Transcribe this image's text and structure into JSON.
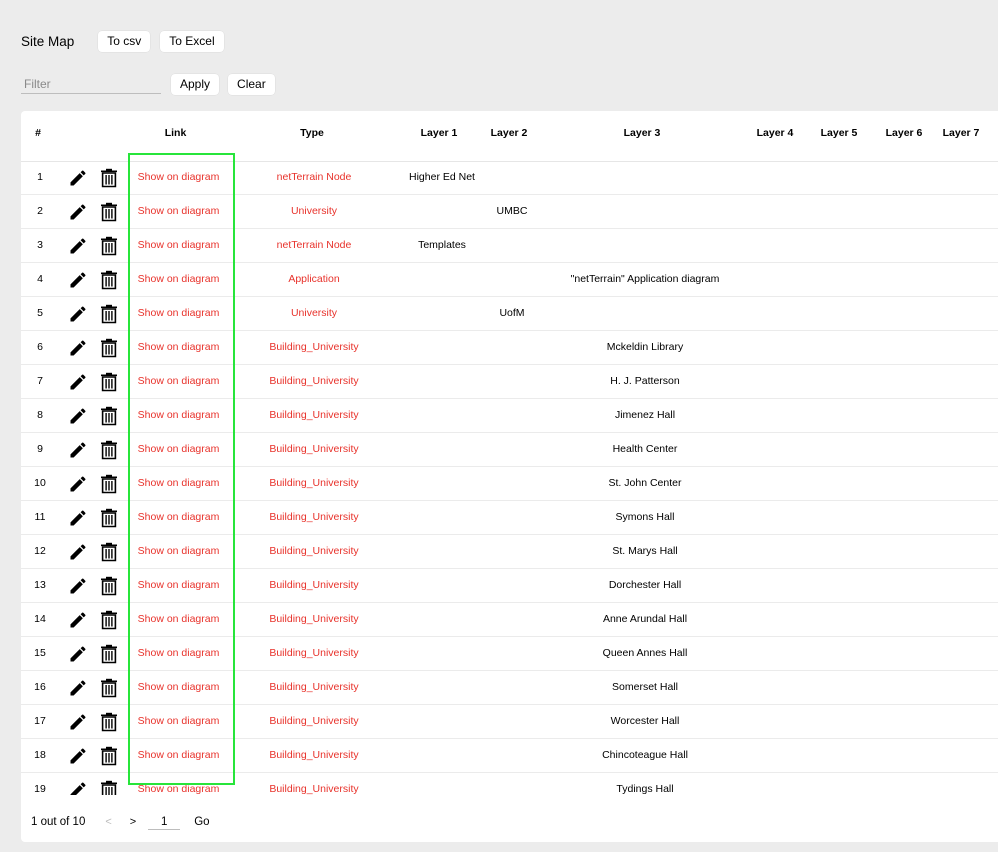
{
  "header": {
    "title": "Site Map",
    "to_csv": "To csv",
    "to_excel": "To Excel"
  },
  "filter": {
    "placeholder": "Filter",
    "value": "",
    "apply": "Apply",
    "clear": "Clear"
  },
  "table": {
    "columns": [
      "#",
      "Link",
      "Type",
      "Layer 1",
      "Layer 2",
      "Layer 3",
      "Layer 4",
      "Layer 5",
      "Layer 6",
      "Layer 7"
    ],
    "rows": [
      {
        "num": "1",
        "link": "Show on diagram",
        "type": "netTerrain Node",
        "layer1": "Higher Ed Net",
        "layer2": "",
        "layer3": ""
      },
      {
        "num": "2",
        "link": "Show on diagram",
        "type": "University",
        "layer1": "",
        "layer2": "UMBC",
        "layer3": ""
      },
      {
        "num": "3",
        "link": "Show on diagram",
        "type": "netTerrain Node",
        "layer1": "Templates",
        "layer2": "",
        "layer3": ""
      },
      {
        "num": "4",
        "link": "Show on diagram",
        "type": "Application",
        "layer1": "",
        "layer2": "",
        "layer3": "\"netTerrain\" Application diagram"
      },
      {
        "num": "5",
        "link": "Show on diagram",
        "type": "University",
        "layer1": "",
        "layer2": "UofM",
        "layer3": ""
      },
      {
        "num": "6",
        "link": "Show on diagram",
        "type": "Building_University",
        "layer1": "",
        "layer2": "",
        "layer3": "Mckeldin Library"
      },
      {
        "num": "7",
        "link": "Show on diagram",
        "type": "Building_University",
        "layer1": "",
        "layer2": "",
        "layer3": "H. J. Patterson"
      },
      {
        "num": "8",
        "link": "Show on diagram",
        "type": "Building_University",
        "layer1": "",
        "layer2": "",
        "layer3": "Jimenez Hall"
      },
      {
        "num": "9",
        "link": "Show on diagram",
        "type": "Building_University",
        "layer1": "",
        "layer2": "",
        "layer3": "Health Center"
      },
      {
        "num": "10",
        "link": "Show on diagram",
        "type": "Building_University",
        "layer1": "",
        "layer2": "",
        "layer3": "St. John Center"
      },
      {
        "num": "11",
        "link": "Show on diagram",
        "type": "Building_University",
        "layer1": "",
        "layer2": "",
        "layer3": "Symons Hall"
      },
      {
        "num": "12",
        "link": "Show on diagram",
        "type": "Building_University",
        "layer1": "",
        "layer2": "",
        "layer3": "St. Marys Hall"
      },
      {
        "num": "13",
        "link": "Show on diagram",
        "type": "Building_University",
        "layer1": "",
        "layer2": "",
        "layer3": "Dorchester Hall"
      },
      {
        "num": "14",
        "link": "Show on diagram",
        "type": "Building_University",
        "layer1": "",
        "layer2": "",
        "layer3": "Anne Arundal Hall"
      },
      {
        "num": "15",
        "link": "Show on diagram",
        "type": "Building_University",
        "layer1": "",
        "layer2": "",
        "layer3": "Queen Annes Hall"
      },
      {
        "num": "16",
        "link": "Show on diagram",
        "type": "Building_University",
        "layer1": "",
        "layer2": "",
        "layer3": "Somerset Hall"
      },
      {
        "num": "17",
        "link": "Show on diagram",
        "type": "Building_University",
        "layer1": "",
        "layer2": "",
        "layer3": "Worcester Hall"
      },
      {
        "num": "18",
        "link": "Show on diagram",
        "type": "Building_University",
        "layer1": "",
        "layer2": "",
        "layer3": "Chincoteague Hall"
      },
      {
        "num": "19",
        "link": "Show on diagram",
        "type": "Building_University",
        "layer1": "",
        "layer2": "",
        "layer3": "Tydings Hall"
      }
    ]
  },
  "pagination": {
    "status": "1 out of 10",
    "prev": "<",
    "next": ">",
    "page": "1",
    "go": "Go"
  },
  "icons": {
    "edit": "pencil-icon",
    "delete": "trash-icon"
  },
  "colors": {
    "link": "#e8322b",
    "highlight": "#27e53a"
  }
}
